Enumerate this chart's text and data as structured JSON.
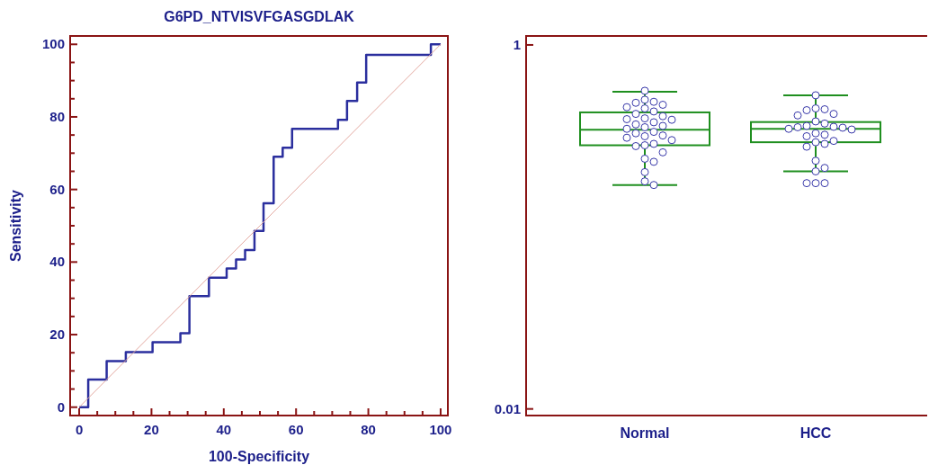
{
  "chart_data": [
    {
      "type": "step",
      "title": "G6PD_NTVISVFGASGDLAK",
      "xlabel": "100-Specificity",
      "ylabel": "Sensitivity",
      "xlim": [
        -2.5,
        102
      ],
      "ylim": [
        -2.3,
        102.3
      ],
      "xticks": [
        0,
        {
          "value": 5,
          "label": null
        },
        {
          "value": 10,
          "label": null
        },
        {
          "value": 15,
          "label": null
        },
        20,
        {
          "value": 25,
          "label": null
        },
        {
          "value": 30,
          "label": null
        },
        {
          "value": 35,
          "label": null
        },
        40,
        {
          "value": 45,
          "label": null
        },
        {
          "value": 50,
          "label": null
        },
        {
          "value": 55,
          "label": null
        },
        60,
        {
          "value": 65,
          "label": null
        },
        {
          "value": 70,
          "label": null
        },
        {
          "value": 75,
          "label": null
        },
        80,
        {
          "value": 85,
          "label": null
        },
        {
          "value": 90,
          "label": null
        },
        {
          "value": 95,
          "label": null
        },
        100
      ],
      "yticks": [
        0,
        {
          "value": 5,
          "label": null
        },
        {
          "value": 10,
          "label": null
        },
        {
          "value": 15,
          "label": null
        },
        20,
        {
          "value": 25,
          "label": null
        },
        {
          "value": 30,
          "label": null
        },
        {
          "value": 35,
          "label": null
        },
        40,
        {
          "value": 45,
          "label": null
        },
        {
          "value": 50,
          "label": null
        },
        {
          "value": 55,
          "label": null
        },
        60,
        {
          "value": 65,
          "label": null
        },
        {
          "value": 70,
          "label": null
        },
        {
          "value": 75,
          "label": null
        },
        80,
        {
          "value": 85,
          "label": null
        },
        {
          "value": 90,
          "label": null
        },
        {
          "value": 95,
          "label": null
        },
        100
      ],
      "series": [
        {
          "type": "step",
          "color": "#2b2f9e",
          "x": [
            0,
            2.5,
            7.6,
            12.9,
            20.3,
            28,
            30.5,
            35.9,
            40.8,
            43.4,
            45.9,
            48.5,
            51,
            53.8,
            56.3,
            58.9,
            71.6,
            74.1,
            76.9,
            79.4,
            97.3,
            100
          ],
          "values": [
            0,
            7.6,
            12.7,
            15.2,
            17.9,
            20.4,
            30.6,
            35.7,
            38.2,
            40.7,
            43.3,
            48.6,
            56.2,
            69,
            71.5,
            76.7,
            79.2,
            84.4,
            89.5,
            97.1,
            100,
            100
          ]
        },
        {
          "type": "line",
          "color": "#e3a8a0",
          "x": [
            0,
            100
          ],
          "values": [
            0,
            100
          ]
        }
      ]
    },
    {
      "type": "box",
      "categories": [
        "Normal",
        "HCC"
      ],
      "log": "y",
      "ylim": [
        0.0092,
        1.12
      ],
      "yticks": [
        1,
        0.01
      ],
      "marker": "circle",
      "series": [
        {
          "type": "box",
          "color": "#1f8f1f",
          "boxes": [
            {
              "low": 0.17,
              "q1": 0.281,
              "median": 0.342,
              "q3": 0.426,
              "high": 0.553
            },
            {
              "low": 0.202,
              "q1": 0.292,
              "median": 0.346,
              "q3": 0.377,
              "high": 0.529
            }
          ]
        },
        {
          "type": "scatter",
          "color": "#3a3aaa",
          "x": [
            "Normal",
            "Normal",
            "Normal",
            "Normal",
            "Normal",
            "Normal",
            "Normal",
            "Normal",
            "Normal",
            "Normal",
            "Normal",
            "Normal",
            "Normal",
            "Normal",
            "Normal",
            "Normal",
            "Normal",
            "Normal",
            "Normal",
            "Normal",
            "Normal",
            "Normal",
            "Normal",
            "Normal",
            "Normal",
            "Normal",
            "Normal",
            "Normal",
            "Normal",
            "Normal",
            "Normal",
            "Normal",
            "Normal",
            "HCC",
            "HCC",
            "HCC",
            "HCC",
            "HCC",
            "HCC",
            "HCC",
            "HCC",
            "HCC",
            "HCC",
            "HCC",
            "HCC",
            "HCC",
            "HCC",
            "HCC",
            "HCC",
            "HCC",
            "HCC",
            "HCC",
            "HCC",
            "HCC",
            "HCC",
            "HCC",
            "HCC",
            "HCC",
            "HCC",
            "HCC"
          ],
          "values": [
            0.56,
            0.5,
            0.487,
            0.481,
            0.469,
            0.455,
            0.448,
            0.431,
            0.418,
            0.406,
            0.395,
            0.391,
            0.388,
            0.376,
            0.366,
            0.359,
            0.353,
            0.346,
            0.333,
            0.327,
            0.318,
            0.315,
            0.309,
            0.3,
            0.286,
            0.281,
            0.278,
            0.257,
            0.237,
            0.228,
            0.2,
            0.178,
            0.17,
            0.529,
            0.448,
            0.443,
            0.438,
            0.418,
            0.41,
            0.38,
            0.37,
            0.359,
            0.355,
            0.353,
            0.351,
            0.346,
            0.343,
            0.327,
            0.321,
            0.315,
            0.297,
            0.292,
            0.286,
            0.276,
            0.231,
            0.211,
            0.202,
            0.174,
            0.174,
            0.174
          ]
        }
      ]
    }
  ]
}
